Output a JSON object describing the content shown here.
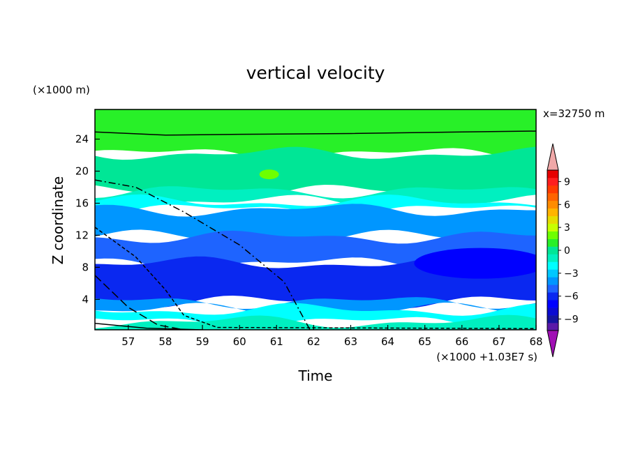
{
  "chart_data": {
    "type": "contour",
    "title": "vertical velocity",
    "xlabel": "Time",
    "ylabel": "Z coordinate",
    "x_units": "(×1000 +1.03E7 s)",
    "y_units": "(×1000 m)",
    "annotation": "x=32750 m",
    "xlim": [
      56.1,
      68
    ],
    "ylim": [
      0.2,
      27.7
    ],
    "x_ticks": [
      57,
      58,
      59,
      60,
      61,
      62,
      63,
      64,
      65,
      66,
      67,
      68
    ],
    "y_ticks": [
      4,
      8,
      12,
      16,
      20,
      24
    ],
    "colorbar": {
      "labels": [
        "9",
        "6",
        "3",
        "0",
        "−3",
        "−6",
        "−9"
      ],
      "label_values": [
        9,
        6,
        3,
        0,
        -3,
        -6,
        -9
      ],
      "range": [
        -10.5,
        10.5
      ],
      "levels": [
        {
          "from": -10.5,
          "to": -9.5,
          "color": "#5a1aa8"
        },
        {
          "from": -9.5,
          "to": -8.5,
          "color": "#1414a0"
        },
        {
          "from": -8.5,
          "to": -7.5,
          "color": "#0a0ad2"
        },
        {
          "from": -7.5,
          "to": -6.5,
          "color": "#0000ff"
        },
        {
          "from": -6.5,
          "to": -5.5,
          "color": "#0a28f0"
        },
        {
          "from": -5.5,
          "to": -4.5,
          "color": "#1e64ff"
        },
        {
          "from": -4.5,
          "to": -3.5,
          "color": "#0096ff"
        },
        {
          "from": -3.5,
          "to": -2.5,
          "color": "#00c8ff"
        },
        {
          "from": -2.5,
          "to": -1.5,
          "color": "#00ffff"
        },
        {
          "from": -1.5,
          "to": -0.5,
          "color": "#00f0c0"
        },
        {
          "from": -0.5,
          "to": 0.5,
          "color": "#00e696"
        },
        {
          "from": 0.5,
          "to": 1.5,
          "color": "#28f028"
        },
        {
          "from": 1.5,
          "to": 2.5,
          "color": "#6eff00"
        },
        {
          "from": 2.5,
          "to": 3.5,
          "color": "#c8ff00"
        },
        {
          "from": 3.5,
          "to": 4.5,
          "color": "#e6dc00"
        },
        {
          "from": 4.5,
          "to": 5.5,
          "color": "#ffb400"
        },
        {
          "from": 5.5,
          "to": 6.5,
          "color": "#ff8c00"
        },
        {
          "from": 6.5,
          "to": 7.5,
          "color": "#ff6400"
        },
        {
          "from": 7.5,
          "to": 8.5,
          "color": "#ff3c00"
        },
        {
          "from": 8.5,
          "to": 9.5,
          "color": "#ff1e1e"
        },
        {
          "from": 9.5,
          "to": 10.5,
          "color": "#e60000"
        }
      ],
      "overflow_high_color": "#f0a8a8",
      "overflow_low_color": "#a010b4"
    },
    "bands": [
      {
        "name": "top-green",
        "value": 1,
        "from": 22.2,
        "to": 27.7
      },
      {
        "name": "light-green",
        "value": 0,
        "from": 17.5,
        "to": 22.2
      },
      {
        "name": "teal",
        "value": -1,
        "from": 16.2,
        "to": 17.5
      },
      {
        "name": "cyan",
        "value": -2,
        "from": 15.2,
        "to": 16.2
      },
      {
        "name": "sky-blue",
        "value": -4,
        "from": 11.8,
        "to": 15.2
      },
      {
        "name": "mid-blue",
        "value": -5,
        "from": 8.5,
        "to": 11.8
      },
      {
        "name": "deep-blue",
        "value": -6,
        "from": 3.7,
        "to": 8.5
      },
      {
        "name": "lower-sky",
        "value": -4,
        "from": 2.7,
        "to": 3.7
      },
      {
        "name": "lower-cyan",
        "value": -2,
        "from": 1.2,
        "to": 2.7
      },
      {
        "name": "bottom-teal",
        "value": -1,
        "from": 0.2,
        "to": 1.2
      }
    ],
    "features": [
      {
        "name": "max-patch",
        "value": 2,
        "x": 60.8,
        "z": 19.6
      },
      {
        "name": "min-patch",
        "value": -7,
        "x": 66.5,
        "z": 8.5
      }
    ],
    "contour_lines": [
      {
        "name": "solid-upper",
        "style": "solid",
        "points": [
          [
            56.1,
            24.9
          ],
          [
            58.0,
            24.5
          ],
          [
            60.0,
            24.6
          ],
          [
            63.0,
            24.7
          ],
          [
            66.0,
            24.9
          ],
          [
            68.0,
            25.0
          ]
        ]
      },
      {
        "name": "dash-dot",
        "style": "dashdot",
        "points": [
          [
            56.1,
            18.9
          ],
          [
            57.2,
            18.0
          ],
          [
            58.5,
            14.9
          ],
          [
            60.0,
            10.8
          ],
          [
            61.2,
            6.2
          ],
          [
            61.9,
            0.2
          ]
        ]
      },
      {
        "name": "dashed",
        "style": "dashed",
        "points": [
          [
            56.1,
            13.0
          ],
          [
            57.2,
            9.3
          ],
          [
            58.0,
            5.2
          ],
          [
            58.5,
            2.0
          ],
          [
            59.4,
            0.5
          ],
          [
            68.0,
            0.35
          ]
        ]
      },
      {
        "name": "long-dash",
        "style": "longdash",
        "points": [
          [
            56.1,
            7.0
          ],
          [
            57.0,
            3.0
          ],
          [
            57.8,
            0.8
          ],
          [
            58.5,
            0.2
          ]
        ]
      },
      {
        "name": "solid-lower",
        "style": "solid",
        "points": [
          [
            56.1,
            1.0
          ],
          [
            57.5,
            0.4
          ],
          [
            59.0,
            0.2
          ]
        ]
      }
    ]
  }
}
